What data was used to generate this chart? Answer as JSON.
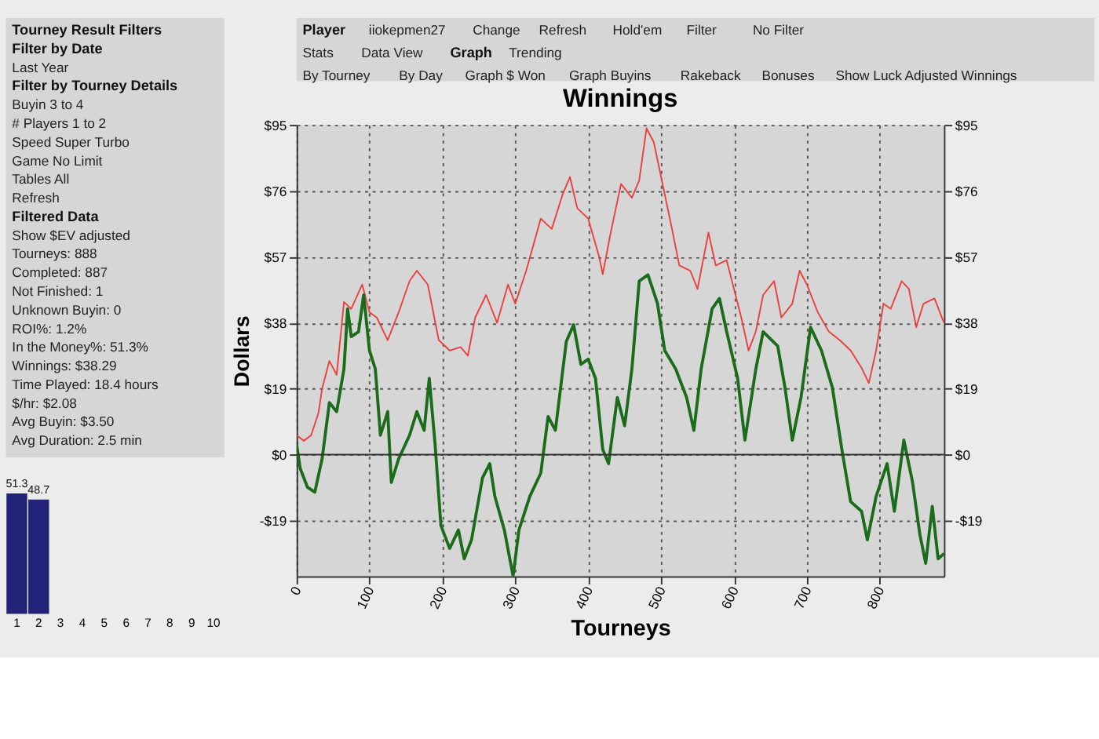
{
  "chart_data": [
    {
      "type": "line",
      "title": "Winnings",
      "xlabel": "Tourneys",
      "ylabel": "Dollars",
      "grid": true,
      "line_style": "solid",
      "annotations": [
        "Tourney Result Filters",
        "Filter by Date",
        "Last Year",
        "Filter by Tourney Details",
        "Buyin  3  to  4",
        "# Players  1  to  2",
        "Speed  Super Turbo",
        "Game  No Limit",
        "Tables  All",
        "Refresh",
        "Filtered Data",
        "Show $EV adjusted",
        "Tourneys:  888",
        "Completed:  887",
        "Not Finished:  1",
        "Unknown Buyin:  0",
        "ROI%:  1.2%",
        "In the Money%:  51.3%",
        "Winnings:  $38.29",
        "Time Played:  18.4 hours",
        "$/hr:  $2.08",
        "Avg Buyin:  $3.50",
        "Avg Duration:  2.5 min",
        "Player",
        "iiokepmen27",
        "Change",
        "Refresh",
        "Hold'em",
        "Filter",
        "No Filter",
        "Stats",
        "Data View",
        "Graph",
        "Trending",
        "By Tourney",
        "By Day",
        "Graph $ Won",
        "Graph Buyins",
        "Rakeback",
        "Bonuses",
        "Show Luck Adjusted Winnings"
      ],
      "xlim": [
        0,
        888
      ],
      "xticks": [
        0,
        100,
        200,
        300,
        400,
        500,
        600,
        700,
        800
      ],
      "ylim": [
        -35,
        95
      ],
      "yticks": [
        {
          "value": -19,
          "label": "-$19"
        },
        {
          "value": 0,
          "label": "$0"
        },
        {
          "value": 19,
          "label": "$19"
        },
        {
          "value": 38,
          "label": "$38"
        },
        {
          "value": 57,
          "label": "$57"
        },
        {
          "value": 76,
          "label": "$76"
        },
        {
          "value": 95,
          "label": "$95"
        }
      ],
      "y2lim": [
        -35,
        95
      ],
      "y2ticks": [
        {
          "value": -19,
          "label": "-$19"
        },
        {
          "value": 0,
          "label": "$0"
        },
        {
          "value": 19,
          "label": "$19"
        },
        {
          "value": 38,
          "label": "$38"
        },
        {
          "value": 57,
          "label": "$57"
        },
        {
          "value": 76,
          "label": "$76"
        },
        {
          "value": 95,
          "label": "$95"
        }
      ],
      "ref_lines": [
        {
          "axis": "y2",
          "value": 0,
          "color": "#333333"
        }
      ],
      "series": [
        {
          "color": "#e8413f",
          "x": [
            0,
            10,
            20,
            30,
            35,
            45,
            55,
            65,
            75,
            90,
            100,
            110,
            125,
            140,
            155,
            165,
            180,
            195,
            210,
            225,
            235,
            245,
            260,
            275,
            290,
            300,
            315,
            335,
            350,
            365,
            375,
            385,
            400,
            415,
            420,
            430,
            445,
            460,
            470,
            480,
            490,
            500,
            515,
            525,
            540,
            550,
            565,
            575,
            590,
            600,
            610,
            620,
            630,
            640,
            655,
            665,
            680,
            690,
            700,
            715,
            730,
            745,
            760,
            775,
            785,
            795,
            805,
            815,
            830,
            840,
            850,
            860,
            875,
            888
          ],
          "values": [
            5.6,
            4,
            5.6,
            12,
            19,
            27,
            23,
            44,
            42,
            49,
            41,
            39.5,
            33,
            41,
            50,
            53,
            49,
            33,
            30,
            31,
            28.5,
            39.5,
            46,
            38,
            49,
            43.5,
            53,
            68,
            65,
            75,
            80,
            71,
            68,
            57,
            52,
            63,
            78,
            74,
            79,
            94,
            90,
            80,
            65,
            54.5,
            53,
            47.7,
            64,
            54.5,
            56,
            47.7,
            39.5,
            30,
            35.5,
            46,
            50,
            39.5,
            43.5,
            53,
            49,
            41,
            35.5,
            33,
            30,
            25,
            20.6,
            30,
            43.5,
            42,
            50,
            47.7,
            36.7,
            43.5,
            45,
            38
          ]
        },
        {
          "color": "#1a6b1a",
          "x": [
            0,
            5,
            15,
            25,
            35,
            45,
            55,
            65,
            70,
            75,
            85,
            92,
            100,
            108,
            115,
            125,
            130,
            140,
            155,
            165,
            175,
            182,
            190,
            198,
            210,
            222,
            230,
            240,
            255,
            265,
            272,
            285,
            297,
            305,
            320,
            335,
            345,
            355,
            370,
            380,
            390,
            400,
            410,
            420,
            428,
            440,
            450,
            460,
            470,
            482,
            495,
            505,
            520,
            535,
            545,
            555,
            570,
            580,
            590,
            605,
            615,
            630,
            640,
            660,
            670,
            680,
            692,
            705,
            720,
            735,
            748,
            760,
            775,
            783,
            795,
            810,
            820,
            833,
            845,
            855,
            863,
            872,
            880,
            888
          ],
          "values": [
            3,
            -4,
            -9.4,
            -10.8,
            -1.2,
            15,
            12.4,
            24.7,
            42,
            34,
            35.4,
            46,
            30,
            24.7,
            5.6,
            12.4,
            -8,
            -1.2,
            5.6,
            12.4,
            7,
            22,
            3,
            -20.4,
            -27,
            -21.7,
            -30,
            -24.5,
            -6.7,
            -2.6,
            -12,
            -21.7,
            -35,
            -21.7,
            -12,
            -5.3,
            11,
            7,
            32.6,
            37.4,
            26,
            27.5,
            22,
            1.5,
            -2.6,
            16.5,
            8.3,
            24.7,
            50,
            51.8,
            43.6,
            30,
            24.7,
            16.5,
            7,
            24.7,
            42,
            45,
            35.4,
            22,
            4.2,
            24.7,
            35.4,
            31.3,
            19.3,
            4.2,
            16.5,
            36.7,
            30,
            19.3,
            1.5,
            -13.5,
            -16.3,
            -24.5,
            -12,
            -2.6,
            -16.3,
            4.2,
            -8,
            -23,
            -31.3,
            -14.9,
            -30,
            -28.5
          ]
        }
      ]
    },
    {
      "type": "bar",
      "categories": [
        "1",
        "2",
        "3",
        "4",
        "5",
        "6",
        "7",
        "8",
        "9",
        "10"
      ],
      "values": [
        51.3,
        48.7,
        null,
        null,
        null,
        null,
        null,
        null,
        null,
        null
      ],
      "color": "#23237a",
      "data_labels": true
    }
  ]
}
